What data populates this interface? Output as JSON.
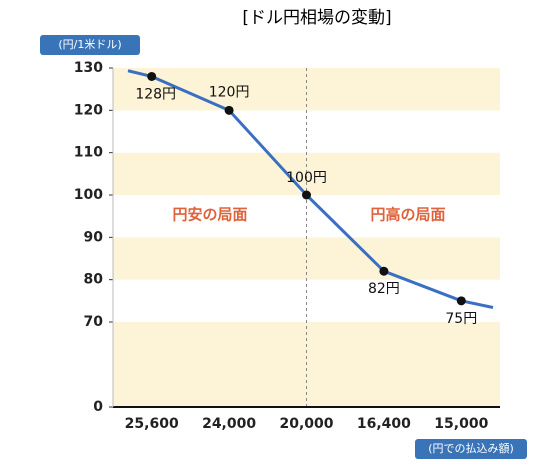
{
  "chart_data": {
    "type": "line",
    "title": "[ドル円相場の変動]",
    "y_label": "(円/1米ドル)",
    "x_label": "(円での払込み額)",
    "categories": [
      "25,600",
      "24,000",
      "20,000",
      "16,400",
      "15,000"
    ],
    "series": [
      {
        "color": "#3a6fc4",
        "values": [
          128,
          120,
          100,
          82,
          75
        ],
        "value_labels": [
          "128円",
          "120円",
          "100円",
          "82円",
          "75円"
        ]
      }
    ],
    "ylim": [
      0,
      130
    ],
    "yticks": [
      0,
      70,
      80,
      90,
      100,
      110,
      120,
      130
    ],
    "annotations": [
      "円安の局面",
      "円高の局面"
    ]
  }
}
